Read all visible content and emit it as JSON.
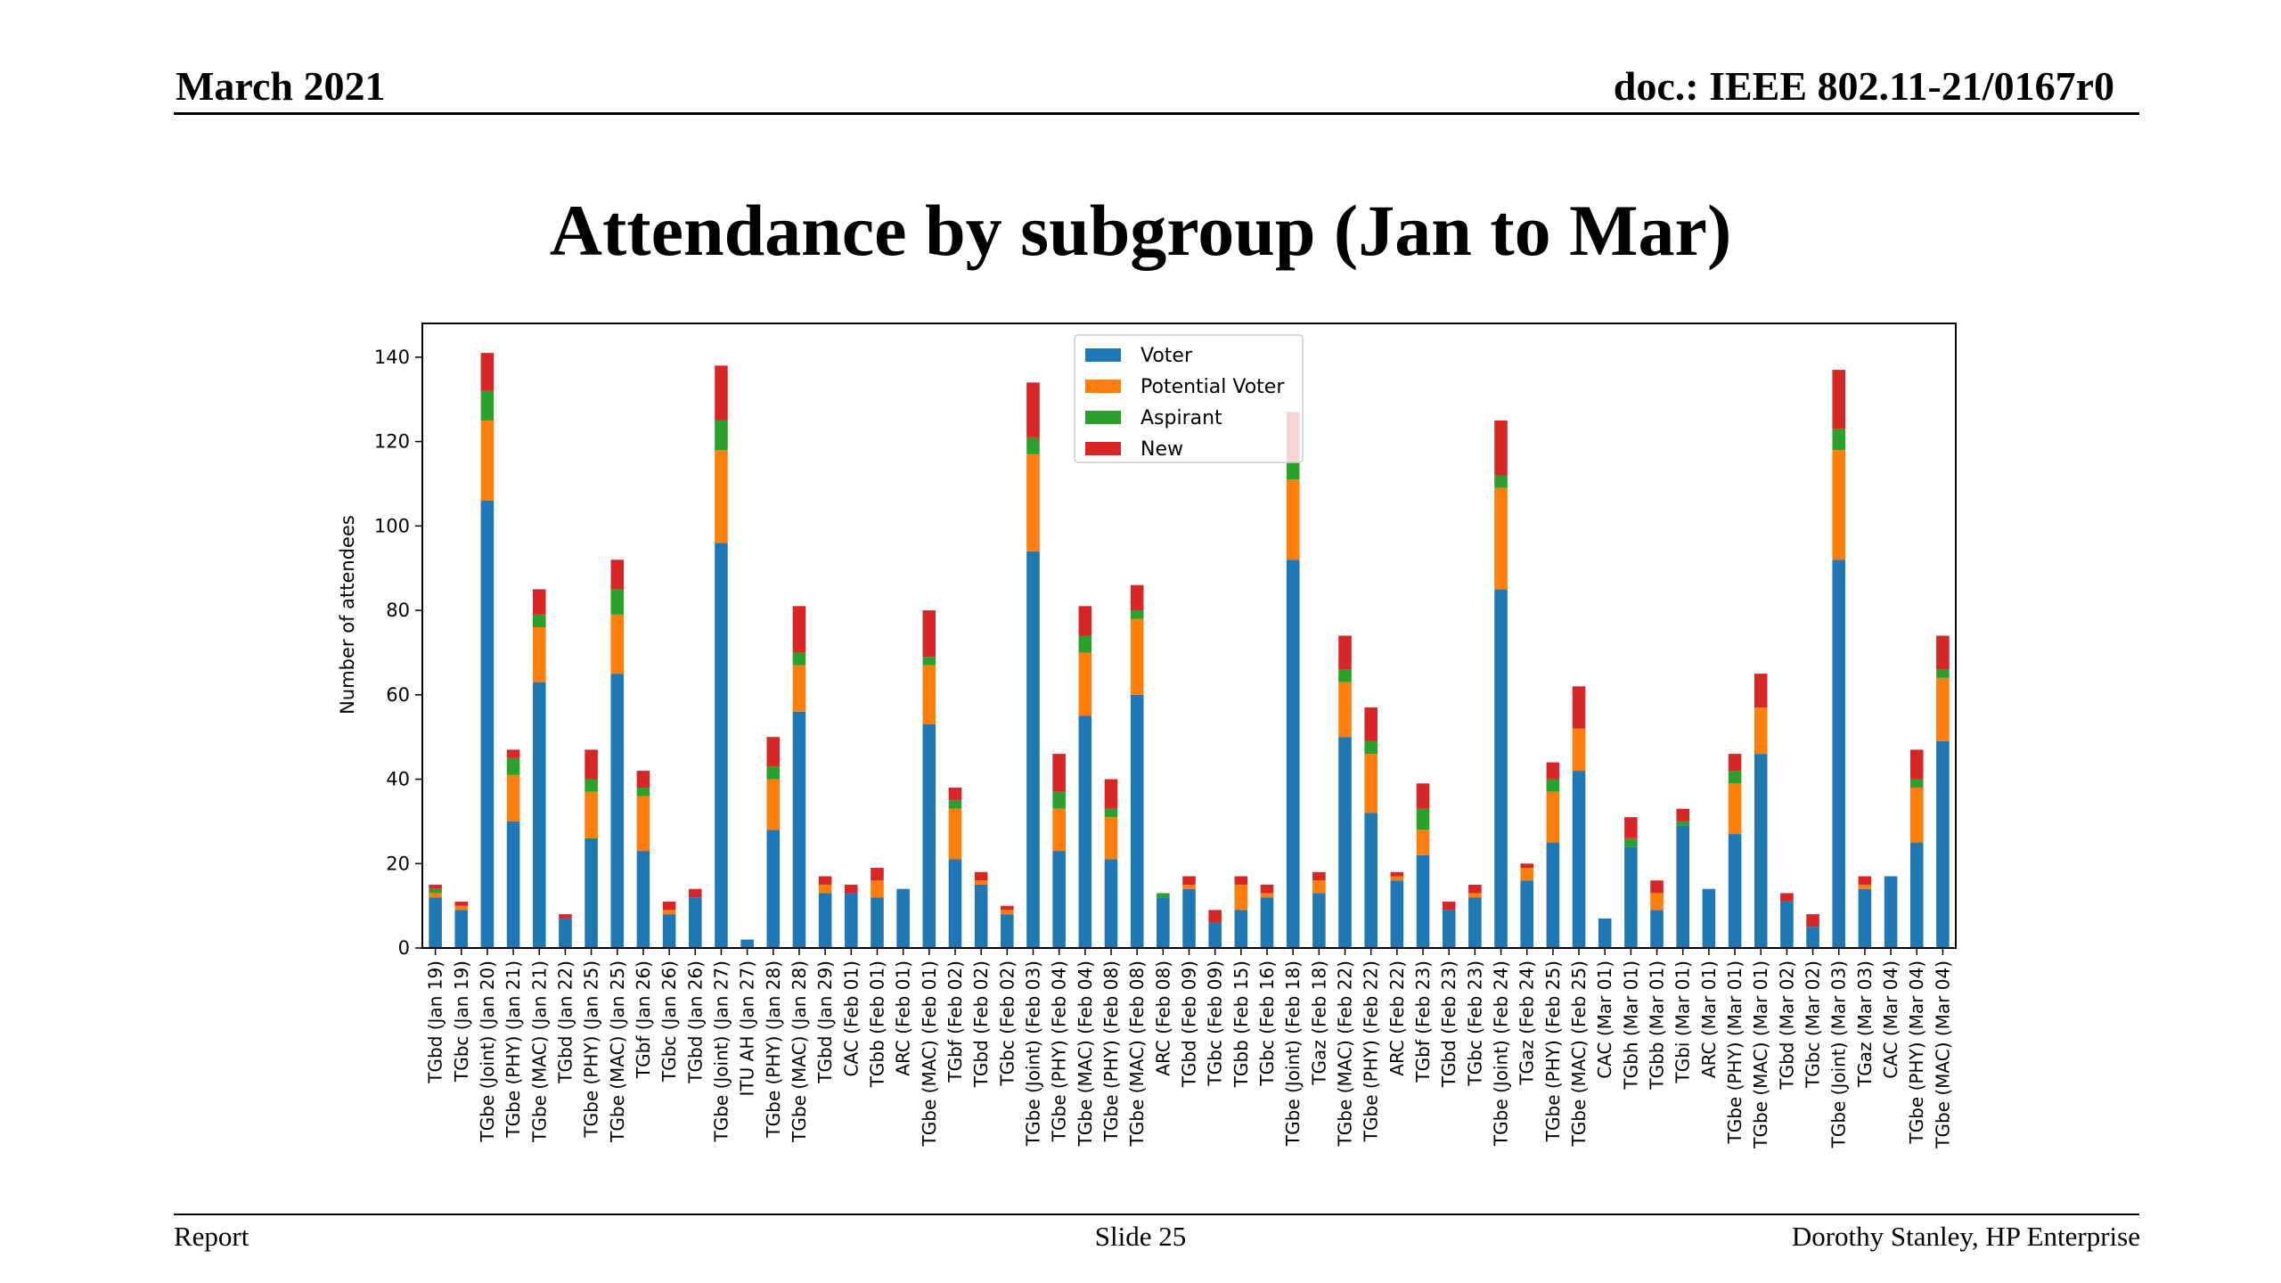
{
  "header": {
    "date": "March 2021",
    "doc_id": "doc.: IEEE 802.11-21/0167r0"
  },
  "slide": {
    "title": "Attendance by subgroup (Jan to Mar)"
  },
  "footer": {
    "left": "Report",
    "center": "Slide 25",
    "right": "Dorothy Stanley, HP Enterprise"
  },
  "colors": {
    "Voter": "#1f77b4",
    "Potential Voter": "#ff7f0e",
    "Aspirant": "#2ca02c",
    "New": "#d62728"
  },
  "chart_data": {
    "type": "bar",
    "stacked": true,
    "title": "",
    "xlabel": "",
    "ylabel": "Number of attendees",
    "ylim": [
      0,
      148
    ],
    "yticks": [
      0,
      20,
      40,
      60,
      80,
      100,
      120,
      140
    ],
    "legend_position": "top-center",
    "grid": false,
    "categories": [
      "TGbd (Jan 19)",
      "TGbc (Jan 19)",
      "TGbe (Joint) (Jan 20)",
      "TGbe (PHY) (Jan 21)",
      "TGbe (MAC) (Jan 21)",
      "TGbd (Jan 22)",
      "TGbe (PHY) (Jan 25)",
      "TGbe (MAC) (Jan 25)",
      "TGbf (Jan 26)",
      "TGbc (Jan 26)",
      "TGbd (Jan 26)",
      "TGbe (Joint) (Jan 27)",
      "ITU AH (Jan 27)",
      "TGbe (PHY) (Jan 28)",
      "TGbe (MAC) (Jan 28)",
      "TGbd (Jan 29)",
      "CAC (Feb 01)",
      "TGbb (Feb 01)",
      "ARC (Feb 01)",
      "TGbe (MAC) (Feb 01)",
      "TGbf (Feb 02)",
      "TGbd (Feb 02)",
      "TGbc (Feb 02)",
      "TGbe (Joint) (Feb 03)",
      "TGbe (PHY) (Feb 04)",
      "TGbe (MAC) (Feb 04)",
      "TGbe (PHY) (Feb 08)",
      "TGbe (MAC) (Feb 08)",
      "ARC (Feb 08)",
      "TGbd (Feb 09)",
      "TGbc (Feb 09)",
      "TGbb (Feb 15)",
      "TGbc (Feb 16)",
      "TGbe (Joint) (Feb 18)",
      "TGaz (Feb 18)",
      "TGbe (MAC) (Feb 22)",
      "TGbe (PHY) (Feb 22)",
      "ARC (Feb 22)",
      "TGbf (Feb 23)",
      "TGbd (Feb 23)",
      "TGbc (Feb 23)",
      "TGbe (Joint) (Feb 24)",
      "TGaz (Feb 24)",
      "TGbe (PHY) (Feb 25)",
      "TGbe (MAC) (Feb 25)",
      "CAC (Mar 01)",
      "TGbh (Mar 01)",
      "TGbb (Mar 01)",
      "TGbi (Mar 01)",
      "ARC (Mar 01)",
      "TGbe (PHY) (Mar 01)",
      "TGbe (MAC) (Mar 01)",
      "TGbd (Mar 02)",
      "TGbc (Mar 02)",
      "TGbe (Joint) (Mar 03)",
      "TGaz (Mar 03)",
      "CAC (Mar 04)",
      "TGbe (PHY) (Mar 04)",
      "TGbe (MAC) (Mar 04)"
    ],
    "series": [
      {
        "name": "Voter",
        "values": [
          12,
          9,
          106,
          30,
          63,
          7,
          26,
          65,
          23,
          8,
          12,
          96,
          2,
          28,
          56,
          13,
          13,
          12,
          14,
          53,
          21,
          15,
          8,
          94,
          23,
          55,
          21,
          60,
          12,
          14,
          6,
          9,
          12,
          92,
          13,
          50,
          32,
          16,
          22,
          9,
          12,
          85,
          16,
          25,
          42,
          7,
          24,
          9,
          29,
          14,
          27,
          46,
          11,
          5,
          92,
          14,
          17,
          25,
          49
        ]
      },
      {
        "name": "Potential Voter",
        "values": [
          1,
          1,
          19,
          11,
          13,
          0,
          11,
          14,
          13,
          1,
          0,
          22,
          0,
          12,
          11,
          2,
          0,
          4,
          0,
          14,
          12,
          1,
          1,
          23,
          10,
          15,
          10,
          18,
          0,
          1,
          0,
          6,
          1,
          19,
          3,
          13,
          14,
          1,
          6,
          0,
          1,
          24,
          3,
          12,
          10,
          0,
          0,
          4,
          0,
          0,
          12,
          11,
          0,
          0,
          26,
          1,
          0,
          13,
          15
        ]
      },
      {
        "name": "Aspirant",
        "values": [
          1,
          0,
          7,
          4,
          3,
          0,
          3,
          6,
          2,
          0,
          0,
          7,
          0,
          3,
          3,
          0,
          0,
          0,
          0,
          2,
          2,
          0,
          0,
          4,
          4,
          4,
          2,
          2,
          1,
          0,
          0,
          0,
          0,
          4,
          0,
          3,
          3,
          0,
          5,
          0,
          0,
          3,
          0,
          3,
          0,
          0,
          2,
          0,
          1,
          0,
          3,
          0,
          0,
          0,
          5,
          0,
          0,
          2,
          2
        ]
      },
      {
        "name": "New",
        "values": [
          1,
          1,
          9,
          2,
          6,
          1,
          7,
          7,
          4,
          2,
          2,
          13,
          0,
          7,
          11,
          2,
          2,
          3,
          0,
          11,
          3,
          2,
          1,
          13,
          9,
          7,
          7,
          6,
          0,
          2,
          3,
          2,
          2,
          12,
          2,
          8,
          8,
          1,
          6,
          2,
          2,
          13,
          1,
          4,
          10,
          0,
          5,
          3,
          3,
          0,
          4,
          8,
          2,
          3,
          14,
          2,
          0,
          7,
          8
        ]
      }
    ]
  }
}
